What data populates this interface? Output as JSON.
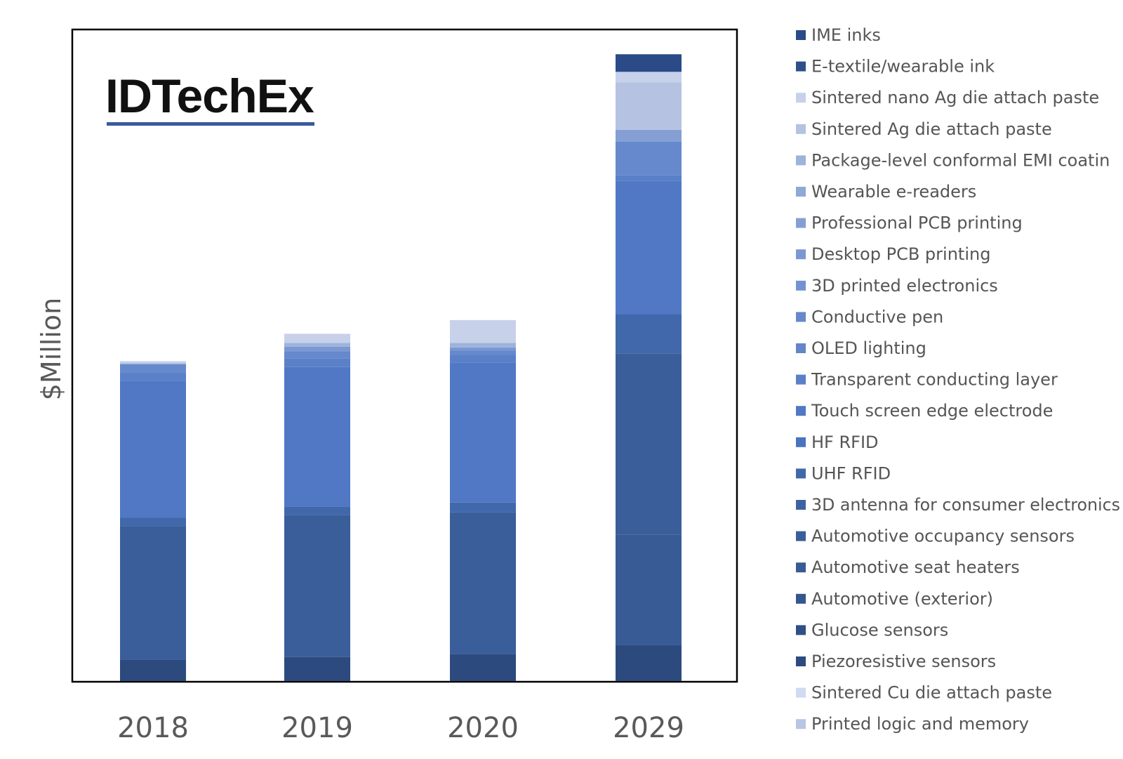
{
  "logo": {
    "text": "IDTechEx",
    "underline_color": "#3a5a9c"
  },
  "chart_data": {
    "type": "bar",
    "stacked": true,
    "title": "",
    "xlabel": "",
    "ylabel": "$Million",
    "categories": [
      "2018",
      "2019",
      "2020",
      "2029"
    ],
    "ylim": [
      0,
      100
    ],
    "grid": false,
    "legend_position": "right",
    "series": [
      {
        "name": "Printed logic and memory",
        "color": "#b8c5e4",
        "values": [
          0,
          0,
          0,
          0
        ]
      },
      {
        "name": "Sintered Cu die attach paste",
        "color": "#d0daf0",
        "values": [
          0,
          0,
          0,
          0
        ]
      },
      {
        "name": "Piezoresistive sensors",
        "color": "#2c4a7e",
        "values": [
          3.3,
          3.7,
          4.1,
          5.5
        ]
      },
      {
        "name": "Glucose sensors",
        "color": "#304f86",
        "values": [
          0,
          0,
          0,
          0
        ]
      },
      {
        "name": "Automotive (exterior)",
        "color": "#34558e",
        "values": [
          0,
          0,
          0,
          0
        ]
      },
      {
        "name": "Automotive seat heaters",
        "color": "#385b95",
        "values": [
          0,
          0,
          0,
          17
        ]
      },
      {
        "name": "Automotive occupancy sensors",
        "color": "#3a5e9a",
        "values": [
          20.5,
          21.8,
          21.8,
          27.8
        ]
      },
      {
        "name": "3D antenna for consumer electronics",
        "color": "#3d62a1",
        "values": [
          0,
          0,
          0,
          0
        ]
      },
      {
        "name": "UHF RFID",
        "color": "#4068aa",
        "values": [
          1.3,
          1.3,
          1.5,
          6
        ]
      },
      {
        "name": "HF RFID",
        "color": "#4a74c0",
        "values": [
          0,
          0,
          0,
          0
        ]
      },
      {
        "name": "Touch screen edge electrode",
        "color": "#5078c4",
        "values": [
          21,
          21.4,
          21.5,
          20.5
        ]
      },
      {
        "name": "Transparent conducting  layer",
        "color": "#5a80c8",
        "values": [
          1.3,
          1.3,
          1.1,
          0.8
        ]
      },
      {
        "name": "OLED lighting",
        "color": "#6485c8",
        "values": [
          0,
          0,
          0,
          0
        ]
      },
      {
        "name": "Conductive pen",
        "color": "#6688cc",
        "values": [
          1.2,
          1.1,
          0.7,
          5.2
        ]
      },
      {
        "name": "3D printed electronics",
        "color": "#7292d0",
        "values": [
          0,
          0,
          0,
          0
        ]
      },
      {
        "name": "Desktop PCB printing",
        "color": "#7b98d2",
        "values": [
          0,
          0.7,
          0.5,
          0
        ]
      },
      {
        "name": "Professional PCB printing",
        "color": "#859fd5",
        "values": [
          0,
          0,
          0,
          1.8
        ]
      },
      {
        "name": "Wearable e-readers",
        "color": "#8fa8d8",
        "values": [
          0,
          0,
          0,
          0
        ]
      },
      {
        "name": "Package-level conformal EMI coatin",
        "color": "#9db3dc",
        "values": [
          0.2,
          0.6,
          0.7,
          0
        ]
      },
      {
        "name": "Sintered Ag die attach paste",
        "color": "#b5c2e2",
        "values": [
          0,
          0,
          0,
          7.3
        ]
      },
      {
        "name": "Sintered nano Ag die attach paste",
        "color": "#c7d1ea",
        "values": [
          0.3,
          1.4,
          3.5,
          1.6
        ]
      },
      {
        "name": "E-textile/wearable ink",
        "color": "#2f4f8a",
        "values": [
          0,
          0,
          0,
          0
        ]
      },
      {
        "name": "IME inks",
        "color": "#2a4a88",
        "values": [
          0,
          0,
          0,
          2.7
        ]
      }
    ]
  }
}
